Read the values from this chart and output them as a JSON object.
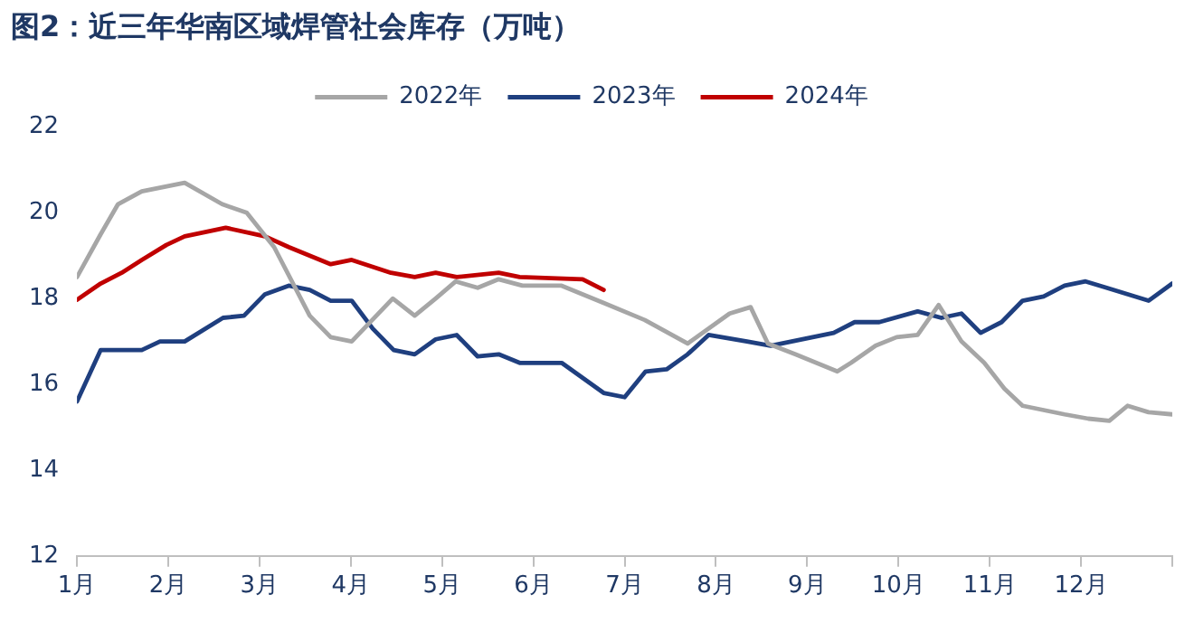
{
  "chart_data": {
    "type": "line",
    "title": "图2：近三年华南区域焊管社会库存（万吨）",
    "xlim": [
      1,
      13
    ],
    "xticks": [
      {
        "value": 1,
        "label": "1月"
      },
      {
        "value": 2,
        "label": "2月"
      },
      {
        "value": 3,
        "label": "3月"
      },
      {
        "value": 4,
        "label": "4月"
      },
      {
        "value": 5,
        "label": "5月"
      },
      {
        "value": 6,
        "label": "6月"
      },
      {
        "value": 7,
        "label": "7月"
      },
      {
        "value": 8,
        "label": "8月"
      },
      {
        "value": 9,
        "label": "9月"
      },
      {
        "value": 10,
        "label": "10月"
      },
      {
        "value": 11,
        "label": "11月"
      },
      {
        "value": 12,
        "label": "12月"
      },
      {
        "value": 13,
        "label": null
      }
    ],
    "ylim": [
      12,
      22
    ],
    "yticks": [
      12,
      14,
      16,
      18,
      20,
      22
    ],
    "grid": false,
    "legend": "top",
    "marker": "none",
    "line_style": "solid",
    "series": [
      {
        "name": "2022年",
        "color": "#a6a6a6",
        "x": [
          1.0,
          1.26,
          1.45,
          1.71,
          2.18,
          2.59,
          2.86,
          3.16,
          3.55,
          3.78,
          4.01,
          4.46,
          4.7,
          4.93,
          5.15,
          5.39,
          5.62,
          5.88,
          6.31,
          6.77,
          7.22,
          7.69,
          8.15,
          8.38,
          8.57,
          8.87,
          9.33,
          9.48,
          9.75,
          9.98,
          10.21,
          10.44,
          10.69,
          10.94,
          11.16,
          11.36,
          11.82,
          12.08,
          12.31,
          12.51,
          12.74,
          13.0
        ],
        "values": [
          18.5,
          19.5,
          20.2,
          20.5,
          20.7,
          20.2,
          20.0,
          19.2,
          17.6,
          17.1,
          17.0,
          18.0,
          17.6,
          18.0,
          18.4,
          18.25,
          18.45,
          18.3,
          18.3,
          17.9,
          17.5,
          16.95,
          17.65,
          17.8,
          16.95,
          16.7,
          16.3,
          16.5,
          16.9,
          17.1,
          17.15,
          17.85,
          17.0,
          16.5,
          15.9,
          15.5,
          15.3,
          15.2,
          15.15,
          15.5,
          15.35,
          15.3
        ]
      },
      {
        "name": "2023年",
        "color": "#1f3f7f",
        "x": [
          1.0,
          1.26,
          1.71,
          1.91,
          2.18,
          2.6,
          2.83,
          3.06,
          3.32,
          3.55,
          3.78,
          4.01,
          4.24,
          4.47,
          4.7,
          4.93,
          5.16,
          5.39,
          5.62,
          5.85,
          6.31,
          6.77,
          7.0,
          7.23,
          7.46,
          7.69,
          7.92,
          8.34,
          8.6,
          8.83,
          9.29,
          9.52,
          9.79,
          10.21,
          10.47,
          10.69,
          10.9,
          11.13,
          11.36,
          11.59,
          11.82,
          12.05,
          12.28,
          12.74,
          13.0
        ],
        "values": [
          15.6,
          16.8,
          16.8,
          17.0,
          17.0,
          17.55,
          17.6,
          18.1,
          18.3,
          18.2,
          17.95,
          17.95,
          17.3,
          16.8,
          16.7,
          17.05,
          17.15,
          16.65,
          16.7,
          16.5,
          16.5,
          15.8,
          15.7,
          16.3,
          16.35,
          16.7,
          17.15,
          17.0,
          16.9,
          17.0,
          17.2,
          17.45,
          17.45,
          17.7,
          17.55,
          17.65,
          17.2,
          17.45,
          17.95,
          18.05,
          18.3,
          18.4,
          18.25,
          17.95,
          18.35
        ]
      },
      {
        "name": "2024年",
        "color": "#c00000",
        "x": [
          1.0,
          1.26,
          1.49,
          1.71,
          1.98,
          2.18,
          2.63,
          3.06,
          3.32,
          3.78,
          4.01,
          4.44,
          4.7,
          4.93,
          5.16,
          5.62,
          5.85,
          6.54,
          6.77
        ],
        "values": [
          17.97,
          18.35,
          18.6,
          18.9,
          19.25,
          19.45,
          19.65,
          19.45,
          19.2,
          18.8,
          18.9,
          18.6,
          18.5,
          18.6,
          18.5,
          18.6,
          18.5,
          18.45,
          18.2
        ]
      }
    ]
  }
}
